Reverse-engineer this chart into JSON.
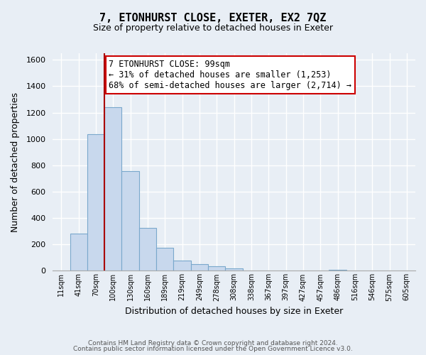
{
  "title": "7, ETONHURST CLOSE, EXETER, EX2 7QZ",
  "subtitle": "Size of property relative to detached houses in Exeter",
  "xlabel": "Distribution of detached houses by size in Exeter",
  "ylabel": "Number of detached properties",
  "bar_color": "#c8d8ed",
  "bar_edge_color": "#7aa8cc",
  "bin_labels": [
    "11sqm",
    "41sqm",
    "70sqm",
    "100sqm",
    "130sqm",
    "160sqm",
    "189sqm",
    "219sqm",
    "249sqm",
    "278sqm",
    "308sqm",
    "338sqm",
    "367sqm",
    "397sqm",
    "427sqm",
    "457sqm",
    "486sqm",
    "516sqm",
    "546sqm",
    "575sqm",
    "605sqm"
  ],
  "bar_values": [
    0,
    280,
    1035,
    1240,
    755,
    325,
    175,
    80,
    50,
    35,
    20,
    0,
    0,
    0,
    0,
    0,
    10,
    0,
    0,
    0,
    0
  ],
  "ylim": [
    0,
    1650
  ],
  "yticks": [
    0,
    200,
    400,
    600,
    800,
    1000,
    1200,
    1400,
    1600
  ],
  "vline_color": "#aa0000",
  "annotation_title": "7 ETONHURST CLOSE: 99sqm",
  "annotation_line1": "← 31% of detached houses are smaller (1,253)",
  "annotation_line2": "68% of semi-detached houses are larger (2,714) →",
  "footer_line1": "Contains HM Land Registry data © Crown copyright and database right 2024.",
  "footer_line2": "Contains public sector information licensed under the Open Government Licence v3.0.",
  "background_color": "#e8eef5",
  "grid_color": "#d0dce8",
  "title_fontsize": 11,
  "subtitle_fontsize": 9
}
